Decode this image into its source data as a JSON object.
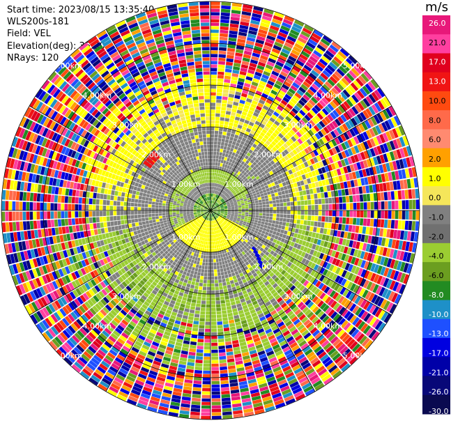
{
  "header": {
    "start_time": "Start time: 2023/08/15 13:35:40",
    "instrument": "WLS200s-181",
    "field": "Field: VEL",
    "elevation": "Elevation(deg): 35.30",
    "nrays": "NRays: 120"
  },
  "chart_data": {
    "type": "heatmap",
    "projection": "polar-ppi",
    "nrays": 120,
    "colorbar": {
      "unit": "m/s",
      "ticks": [
        "26.0",
        "21.0",
        "17.0",
        "13.0",
        "10.0",
        "8.0",
        "6.0",
        "2.0",
        "1.0",
        "0.0",
        "-1.0",
        "-2.0",
        "-4.0",
        "-6.0",
        "-8.0",
        "-10.0",
        "-13.0",
        "-17.0",
        "-21.0",
        "-26.0",
        "-30.0"
      ],
      "bins": [
        {
          "color": "#e8187a",
          "label": "26.0"
        },
        {
          "color": "#ff3fa0",
          "label": ""
        },
        {
          "color": "#e0001e",
          "label": "21.0"
        },
        {
          "color": "#f01414",
          "label": "17.0"
        },
        {
          "color": "#ff4a10",
          "label": "13.0"
        },
        {
          "color": "#ff6a4a",
          "label": "10.0"
        },
        {
          "color": "#ff8a70",
          "label": "8.0"
        },
        {
          "color": "#ffa000",
          "label": "6.0"
        },
        {
          "color": "#ffff00",
          "label": "2.0"
        },
        {
          "color": "#f5e65a",
          "label": "1.0"
        },
        {
          "color": "#808080",
          "label": "0.0"
        },
        {
          "color": "#707070",
          "label": "-1.0"
        },
        {
          "color": "#9bcd32",
          "label": "-2.0"
        },
        {
          "color": "#6b9e20",
          "label": "-4.0"
        },
        {
          "color": "#228b22",
          "label": "-6.0"
        },
        {
          "color": "#1e90c8",
          "label": "-8.0"
        },
        {
          "color": "#1e50ff",
          "label": "-10.0"
        },
        {
          "color": "#0000e0",
          "label": "-13.0"
        },
        {
          "color": "#0000a8",
          "label": "-17.0"
        },
        {
          "color": "#080878",
          "label": "-21.0"
        },
        {
          "color": "#0a0a50",
          "label": "-26.0"
        }
      ]
    },
    "range_rings_km": [
      1,
      2,
      3,
      4,
      5
    ],
    "ring_labels": [
      "1.00km",
      "1.00km",
      "1.00km",
      "1.00km",
      "2.00km",
      "2.00km",
      "2.00km",
      "2.00km",
      "3.00km",
      "3.00km",
      "3.00km",
      "3.00km",
      "4.00km",
      "4.00km",
      "4.00km",
      "4.00km",
      "5.00km",
      "5.00km",
      "5.00km",
      "5.00km"
    ]
  }
}
